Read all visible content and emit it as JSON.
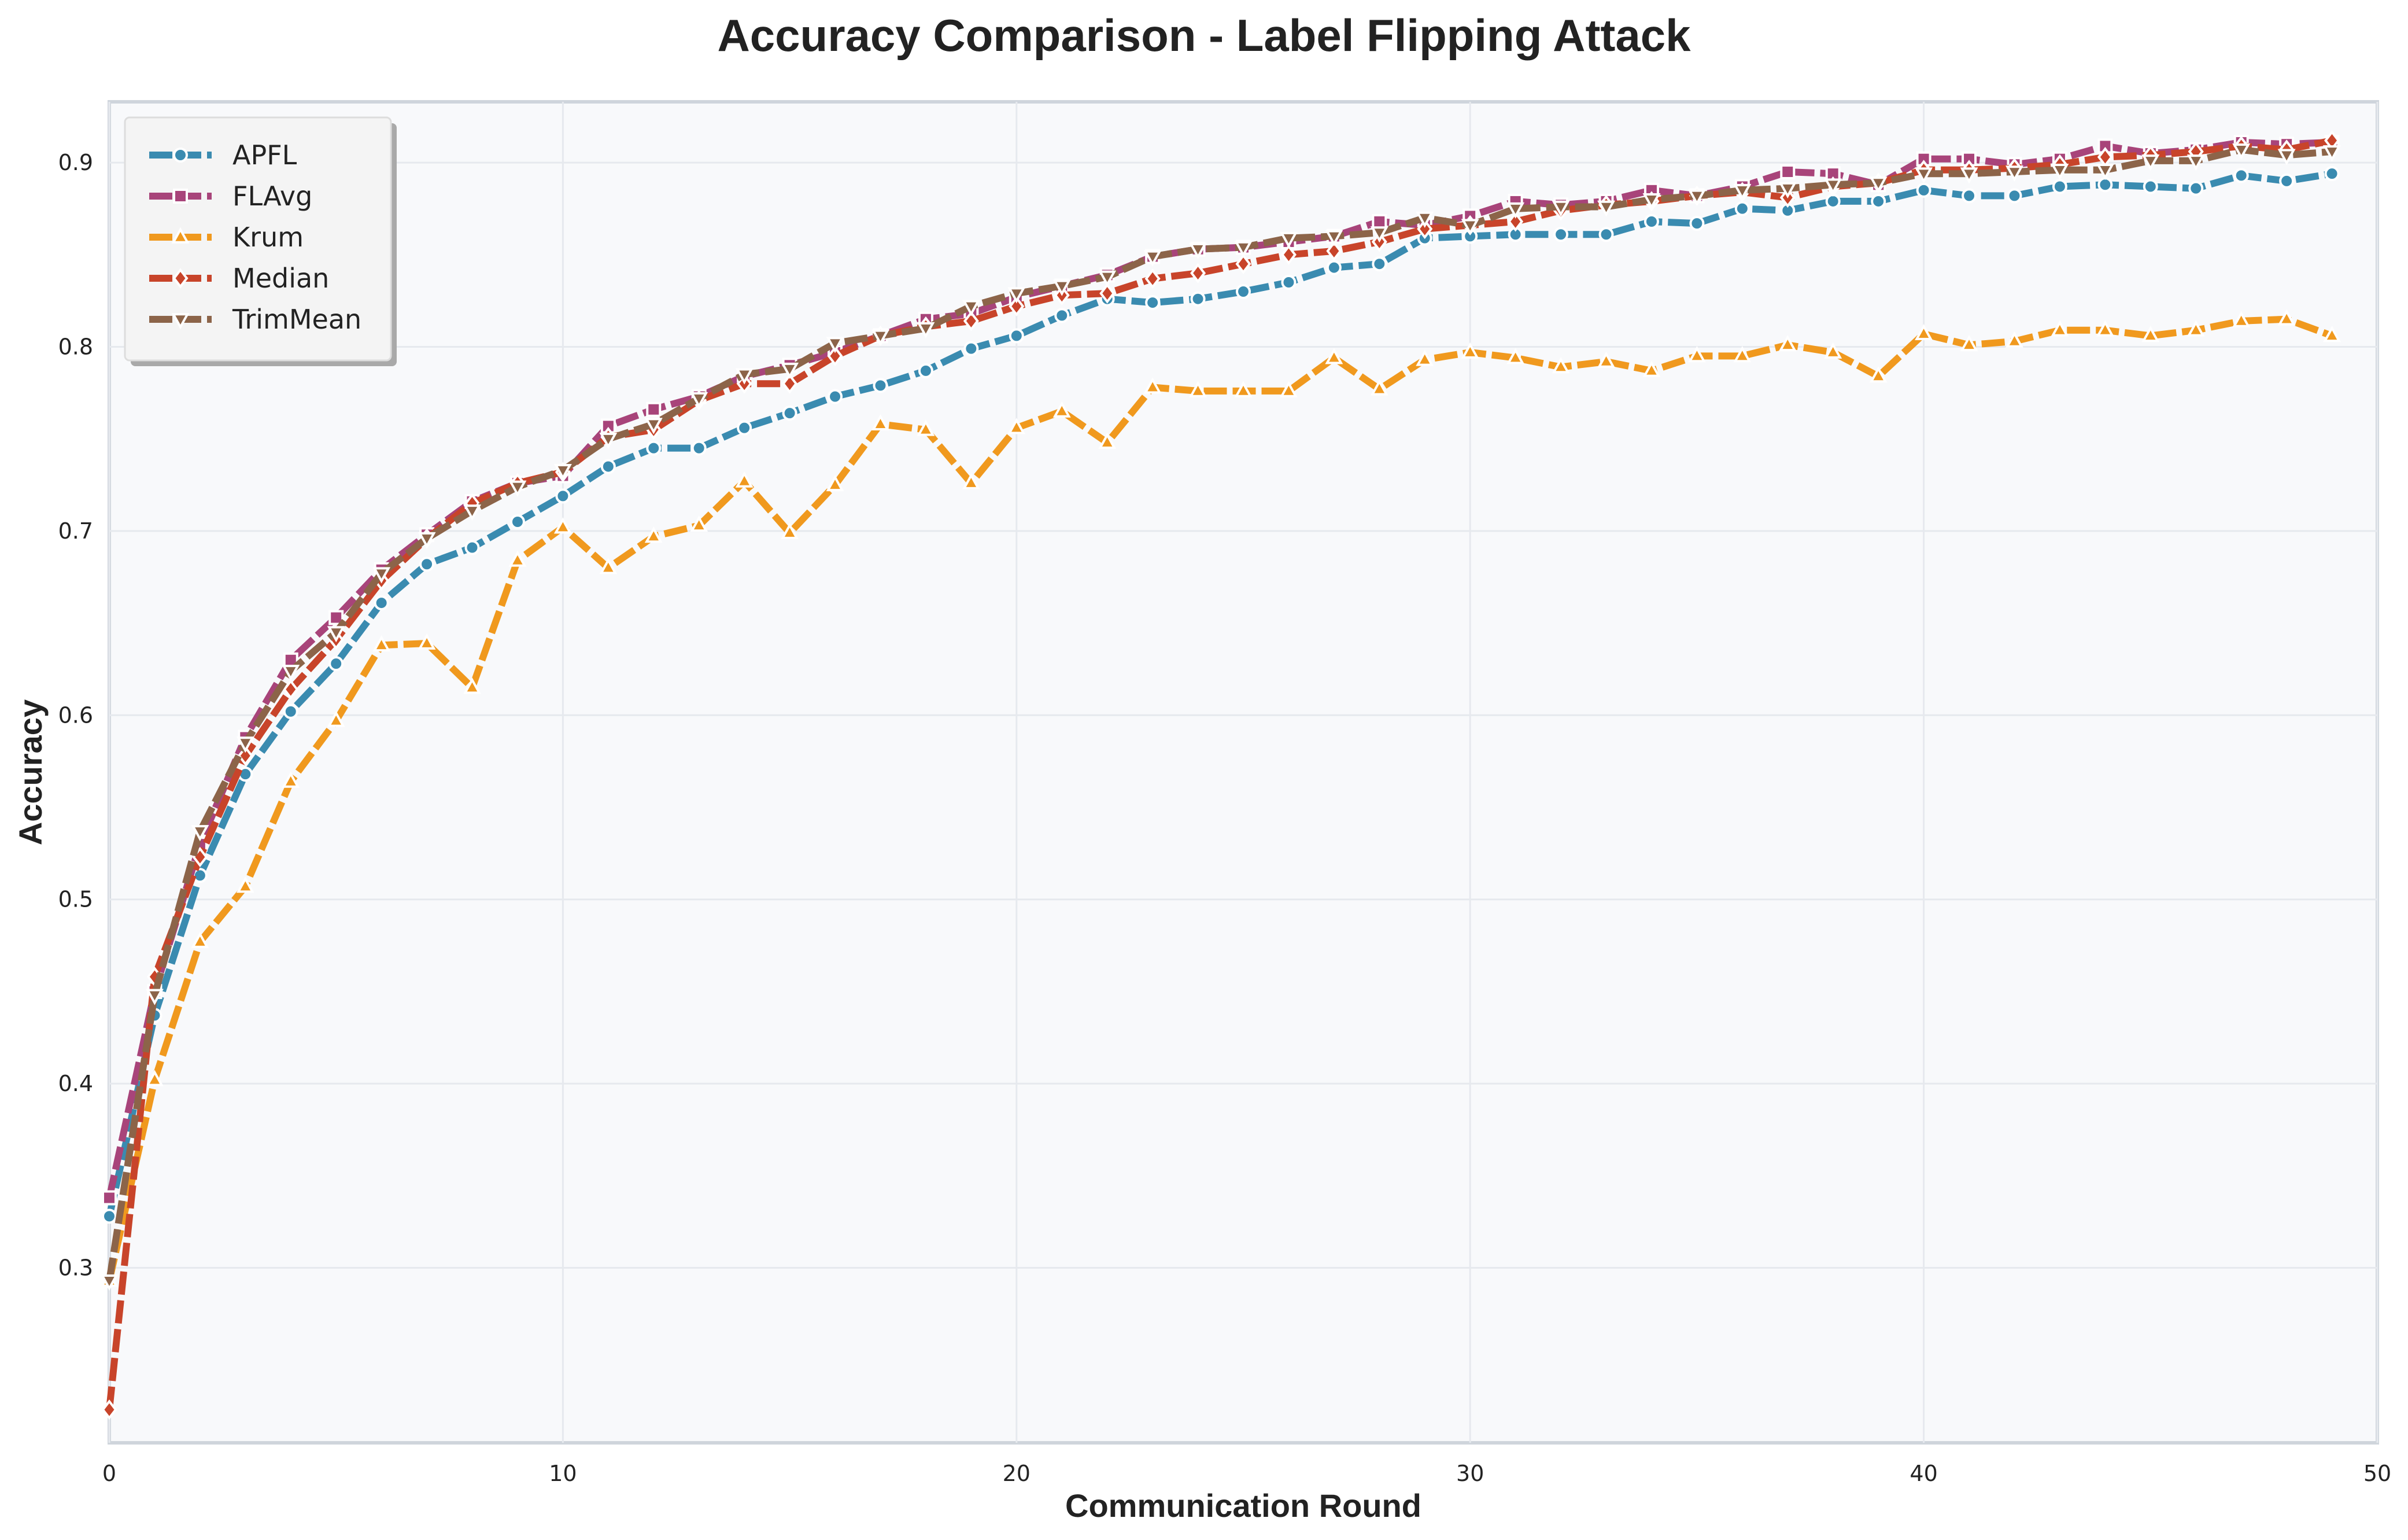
{
  "chart_data": {
    "type": "line",
    "title": "Accuracy Comparison - Label Flipping Attack",
    "xlabel": "Communication Round",
    "ylabel": "Accuracy",
    "xlim": [
      0,
      50
    ],
    "ylim": [
      0.205,
      0.933
    ],
    "xticks": [
      0,
      10,
      20,
      30,
      40,
      50
    ],
    "yticks": [
      0.3,
      0.4,
      0.5,
      0.6,
      0.7,
      0.8,
      0.9
    ],
    "grid": true,
    "legend_position": "top-left",
    "x": [
      0,
      1,
      2,
      3,
      4,
      5,
      6,
      7,
      8,
      9,
      10,
      11,
      12,
      13,
      14,
      15,
      16,
      17,
      18,
      19,
      20,
      21,
      22,
      23,
      24,
      25,
      26,
      27,
      28,
      29,
      30,
      31,
      32,
      33,
      34,
      35,
      36,
      37,
      38,
      39,
      40,
      41,
      42,
      43,
      44,
      45,
      46,
      47,
      48,
      49
    ],
    "series": [
      {
        "name": "APFL",
        "color": "#3a8bb0",
        "marker": "circle",
        "values": [
          0.328,
          0.437,
          0.513,
          0.568,
          0.602,
          0.628,
          0.661,
          0.682,
          0.691,
          0.705,
          0.719,
          0.735,
          0.745,
          0.745,
          0.756,
          0.764,
          0.773,
          0.779,
          0.787,
          0.799,
          0.806,
          0.817,
          0.826,
          0.824,
          0.826,
          0.83,
          0.835,
          0.843,
          0.845,
          0.859,
          0.86,
          0.861,
          0.861,
          0.861,
          0.868,
          0.867,
          0.875,
          0.874,
          0.879,
          0.879,
          0.885,
          0.882,
          0.882,
          0.887,
          0.888,
          0.887,
          0.886,
          0.893,
          0.89,
          0.894
        ]
      },
      {
        "name": "FLAvg",
        "color": "#a8447a",
        "marker": "square",
        "values": [
          0.338,
          0.45,
          0.53,
          0.588,
          0.63,
          0.653,
          0.679,
          0.698,
          0.716,
          0.726,
          0.73,
          0.757,
          0.766,
          0.773,
          0.784,
          0.79,
          0.797,
          0.806,
          0.815,
          0.818,
          0.827,
          0.833,
          0.839,
          0.849,
          0.853,
          0.854,
          0.857,
          0.86,
          0.868,
          0.866,
          0.871,
          0.879,
          0.877,
          0.879,
          0.885,
          0.882,
          0.887,
          0.895,
          0.894,
          0.888,
          0.902,
          0.902,
          0.899,
          0.902,
          0.909,
          0.905,
          0.907,
          0.911,
          0.91,
          0.911
        ]
      },
      {
        "name": "Krum",
        "color": "#f0991e",
        "marker": "triangle-up",
        "values": [
          0.293,
          0.402,
          0.477,
          0.507,
          0.564,
          0.597,
          0.638,
          0.639,
          0.615,
          0.684,
          0.702,
          0.68,
          0.697,
          0.703,
          0.727,
          0.699,
          0.725,
          0.758,
          0.755,
          0.726,
          0.756,
          0.765,
          0.748,
          0.778,
          0.776,
          0.776,
          0.776,
          0.794,
          0.777,
          0.793,
          0.797,
          0.794,
          0.789,
          0.792,
          0.787,
          0.795,
          0.795,
          0.801,
          0.797,
          0.784,
          0.807,
          0.801,
          0.803,
          0.809,
          0.809,
          0.806,
          0.809,
          0.814,
          0.815,
          0.806
        ]
      },
      {
        "name": "Median",
        "color": "#c8442a",
        "marker": "diamond",
        "values": [
          0.223,
          0.458,
          0.523,
          0.578,
          0.614,
          0.641,
          0.673,
          0.696,
          0.715,
          0.726,
          0.732,
          0.751,
          0.755,
          0.771,
          0.78,
          0.78,
          0.795,
          0.806,
          0.811,
          0.814,
          0.822,
          0.828,
          0.829,
          0.837,
          0.84,
          0.845,
          0.85,
          0.852,
          0.857,
          0.864,
          0.866,
          0.868,
          0.874,
          0.877,
          0.879,
          0.882,
          0.884,
          0.881,
          0.887,
          0.889,
          0.896,
          0.896,
          0.897,
          0.899,
          0.903,
          0.904,
          0.906,
          0.909,
          0.907,
          0.912
        ]
      },
      {
        "name": "TrimMean",
        "color": "#8c6449",
        "marker": "triangle-down",
        "values": [
          0.293,
          0.448,
          0.537,
          0.585,
          0.624,
          0.645,
          0.677,
          0.696,
          0.711,
          0.724,
          0.733,
          0.75,
          0.758,
          0.772,
          0.785,
          0.788,
          0.802,
          0.806,
          0.81,
          0.822,
          0.829,
          0.833,
          0.838,
          0.849,
          0.853,
          0.854,
          0.859,
          0.86,
          0.862,
          0.87,
          0.866,
          0.875,
          0.876,
          0.876,
          0.88,
          0.882,
          0.885,
          0.886,
          0.888,
          0.889,
          0.894,
          0.894,
          0.895,
          0.896,
          0.896,
          0.901,
          0.901,
          0.907,
          0.904,
          0.906
        ]
      }
    ]
  }
}
